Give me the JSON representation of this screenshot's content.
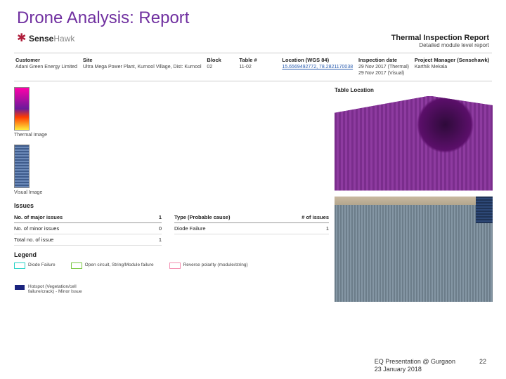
{
  "slide": {
    "title": "Drone Analysis: Report",
    "footer_text": "EQ Presentation @ Gurgaon\n23 January 2018",
    "page_number": "22"
  },
  "logo": {
    "brand1": "Sense",
    "brand2": "Hawk"
  },
  "report_title": {
    "line1": "Thermal Inspection Report",
    "line2": "Detailed module level report"
  },
  "meta": {
    "customer": {
      "label": "Customer",
      "value": "Adani Green Energy Limited"
    },
    "site": {
      "label": "Site",
      "value": "Ultra Mega Power Plant, Kurnool Village, Dist: Kurnool"
    },
    "block": {
      "label": "Block",
      "value": "02"
    },
    "table": {
      "label": "Table #",
      "value": "11-02"
    },
    "location": {
      "label": "Location (WGS 84)",
      "value": "15.6569492772, 78.2821170038"
    },
    "inspection": {
      "label": "Inspection date",
      "value1": "29 Nov 2017 (Thermal)",
      "value2": "29 Nov 2017 (Visual)"
    },
    "pm": {
      "label": "Project Manager (Sensehawk)",
      "value": "Karthik Mekala"
    }
  },
  "thumbs": {
    "thermal_label": "Thermal Image",
    "visual_label": "Visual Image"
  },
  "issues": {
    "section": "Issues",
    "rows": [
      {
        "label": "No. of major issues",
        "value": "1"
      },
      {
        "label": "No. of minor issues",
        "value": "0"
      },
      {
        "label": "Total no. of issue",
        "value": "1"
      }
    ],
    "type_header_a": "Type (Probable cause)",
    "type_header_b": "# of issues",
    "type_rows": [
      {
        "label": "Diode Failure",
        "value": "1"
      }
    ]
  },
  "legend": {
    "section": "Legend",
    "items": [
      {
        "label": "Diode Failure",
        "swatch": "sw-cyan"
      },
      {
        "label": "Open circuit, String/Module failure",
        "swatch": "sw-green"
      },
      {
        "label": "Reverse polarity (module/string)",
        "swatch": "sw-pink"
      },
      {
        "label": "Hotspot (Vegetation/cell failure/crack) - Minor Issue",
        "swatch": "sw-navy"
      }
    ]
  },
  "right": {
    "header": "Table Location"
  },
  "colors": {
    "title_color": "#7030a0",
    "link_color": "#2a5db0",
    "rule_color": "#cccccc"
  }
}
